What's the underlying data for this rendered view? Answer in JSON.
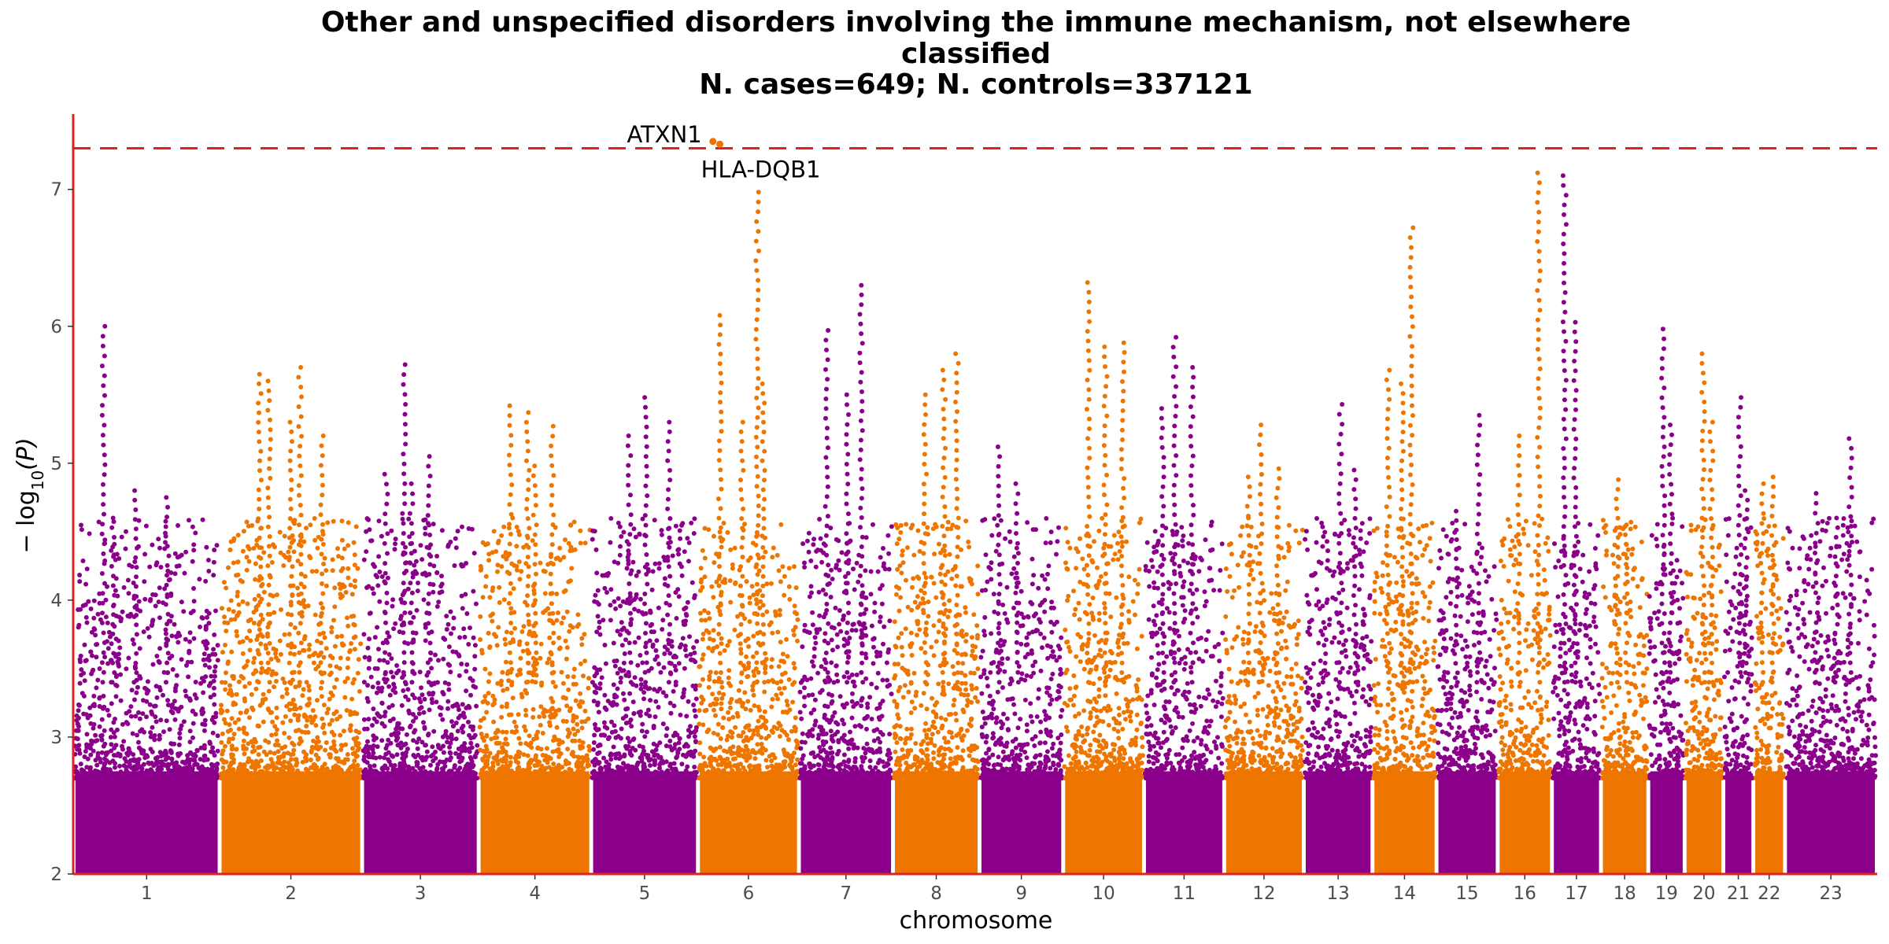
{
  "chart_data": {
    "type": "scatter",
    "subtype": "manhattan",
    "title_lines": [
      "Other and unspecified disorders involving the immune mechanism, not elsewhere",
      "classified",
      "N. cases=649; N. controls=337121"
    ],
    "xlabel": "chromosome",
    "ylabel_main": "− log",
    "ylabel_sub": "10",
    "ylabel_var": "(P)",
    "ylim": [
      2,
      7.55
    ],
    "yticks": [
      "2",
      "3",
      "4",
      "5",
      "6",
      "7"
    ],
    "significance_threshold": 7.3,
    "colors": {
      "odd": "#8B008B",
      "even": "#EE7600",
      "threshold": "#E3211C",
      "axis": "#E3211C"
    },
    "chromosomes": [
      {
        "label": "1",
        "length": 249,
        "peaks": [
          6.0,
          4.8,
          4.75,
          4.6
        ]
      },
      {
        "label": "2",
        "length": 243,
        "peaks": [
          5.65,
          5.3,
          5.2,
          5.6,
          5.7
        ]
      },
      {
        "label": "3",
        "length": 198,
        "peaks": [
          5.72,
          5.05,
          4.92,
          4.85
        ]
      },
      {
        "label": "4",
        "length": 191,
        "peaks": [
          5.37,
          5.27,
          5.42,
          4.98
        ]
      },
      {
        "label": "5",
        "length": 181,
        "peaks": [
          5.48,
          5.3,
          5.2
        ]
      },
      {
        "label": "6",
        "length": 171,
        "peaks": [
          6.98,
          6.08,
          5.3,
          5.58
        ]
      },
      {
        "label": "7",
        "length": 159,
        "peaks": [
          6.3,
          5.97,
          5.5
        ]
      },
      {
        "label": "8",
        "length": 146,
        "peaks": [
          5.8,
          5.5,
          5.68
        ]
      },
      {
        "label": "9",
        "length": 141,
        "peaks": [
          5.12,
          4.85
        ]
      },
      {
        "label": "10",
        "length": 136,
        "peaks": [
          6.32,
          5.85,
          5.88
        ]
      },
      {
        "label": "11",
        "length": 135,
        "peaks": [
          5.92,
          5.7,
          5.4
        ]
      },
      {
        "label": "12",
        "length": 134,
        "peaks": [
          5.28,
          4.96,
          4.9
        ]
      },
      {
        "label": "13",
        "length": 115,
        "peaks": [
          5.43,
          4.95
        ]
      },
      {
        "label": "14",
        "length": 107,
        "peaks": [
          6.72,
          5.68,
          5.58
        ]
      },
      {
        "label": "15",
        "length": 102,
        "peaks": [
          5.35,
          4.65
        ]
      },
      {
        "label": "16",
        "length": 90,
        "peaks": [
          7.12,
          5.2
        ]
      },
      {
        "label": "17",
        "length": 81,
        "peaks": [
          7.1,
          6.03
        ]
      },
      {
        "label": "18",
        "length": 78,
        "peaks": [
          4.88,
          4.55
        ]
      },
      {
        "label": "19",
        "length": 59,
        "peaks": [
          5.98,
          5.28
        ]
      },
      {
        "label": "20",
        "length": 63,
        "peaks": [
          5.8,
          5.3
        ]
      },
      {
        "label": "21",
        "length": 48,
        "peaks": [
          5.48,
          4.8
        ]
      },
      {
        "label": "22",
        "length": 51,
        "peaks": [
          4.9,
          4.85
        ]
      },
      {
        "label": "23",
        "length": 155,
        "peaks": [
          5.18,
          4.78,
          4.6
        ]
      }
    ],
    "annotations": [
      {
        "label": "ATXN1",
        "chromosome": "6",
        "value": 7.35
      },
      {
        "label": "HLA-DQB1",
        "chromosome": "6",
        "value": 7.33
      }
    ]
  }
}
